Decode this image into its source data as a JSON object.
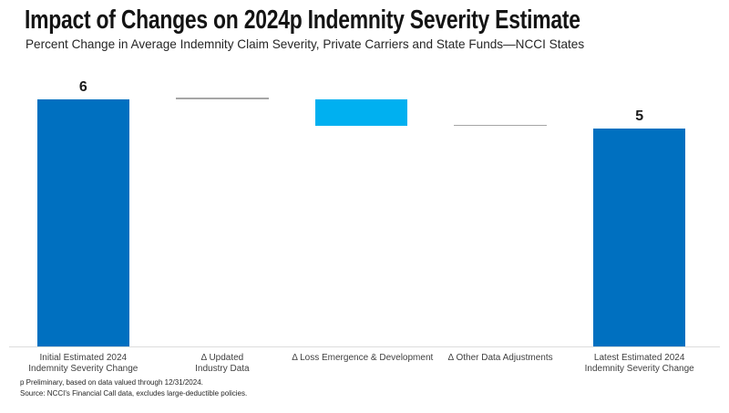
{
  "chart_data": {
    "type": "bar",
    "variant": "waterfall",
    "title": "Impact of Changes on 2024p Indemnity Severity Estimate",
    "subtitle": "Percent Change in Average Indemnity Claim Severity, Private Carriers and State Funds—NCCI States",
    "unit": "percent",
    "ylim": [
      0,
      6.55
    ],
    "grid": false,
    "legend": "none",
    "y_axis_visible": false,
    "categories": [
      {
        "label_lines": [
          "Initial Estimated 2024",
          "Indemnity Severity Change"
        ],
        "kind": "total",
        "start": 0,
        "end": 6.0,
        "data_label": "6",
        "color": "#0070C0"
      },
      {
        "label_lines": [
          "Δ Updated",
          "Industry Data"
        ],
        "kind": "zero-change",
        "start": 6.0,
        "end": 6.0,
        "data_label": "",
        "color": "#A6A6A6"
      },
      {
        "label_lines": [
          "Δ Loss Emergence & Development"
        ],
        "kind": "decrease",
        "start": 6.0,
        "end": 5.35,
        "data_label": "",
        "color": "#00B0F0"
      },
      {
        "label_lines": [
          "Δ Other Data Adjustments"
        ],
        "kind": "zero-change",
        "start": 5.35,
        "end": 5.35,
        "data_label": "",
        "color": "#A6A6A6"
      },
      {
        "label_lines": [
          "Latest Estimated 2024",
          "Indemnity Severity Change"
        ],
        "kind": "total",
        "start": 0,
        "end": 5.3,
        "data_label": "5",
        "color": "#0070C0"
      }
    ],
    "footnotes": [
      "p Preliminary, based on data valued through 12/31/2024.",
      "Source: NCCI's Financial Call data, excludes large-deductible policies."
    ]
  },
  "colors": {
    "primary_bar": "#0070C0",
    "highlight_bar": "#00B0F0",
    "connector_line": "#A6A6A6",
    "axis_line": "#DCDCDC",
    "title_text": "#141414",
    "label_text": "#404040"
  }
}
